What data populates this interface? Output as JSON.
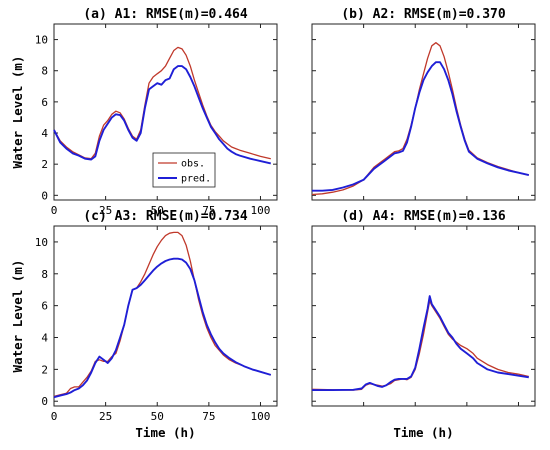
{
  "chart_data": [
    {
      "type": "line",
      "title": "(a) A1: RMSE(m)=0.464",
      "xlabel": "",
      "ylabel": "Water Level (m)",
      "xlim": [
        0,
        108
      ],
      "ylim": [
        -0.3,
        11
      ],
      "xticks": [
        "0",
        "25",
        "50",
        "75",
        "100"
      ],
      "yticks": [
        "0",
        "2",
        "4",
        "6",
        "8",
        "10"
      ],
      "legend": {
        "position": "lower-center",
        "entries": [
          "obs.",
          "pred."
        ]
      },
      "series": [
        {
          "name": "obs.",
          "color": "#c0392b",
          "x": [
            0,
            3,
            6,
            9,
            12,
            15,
            18,
            20,
            22,
            24,
            26,
            28,
            30,
            32,
            34,
            36,
            38,
            40,
            42,
            44,
            46,
            48,
            50,
            52,
            54,
            56,
            58,
            60,
            62,
            64,
            66,
            68,
            70,
            72,
            74,
            76,
            78,
            80,
            82,
            84,
            86,
            88,
            90,
            95,
            100,
            105
          ],
          "y": [
            4.2,
            3.5,
            3.1,
            2.8,
            2.6,
            2.4,
            2.35,
            2.7,
            3.8,
            4.5,
            4.8,
            5.2,
            5.4,
            5.3,
            4.9,
            4.3,
            3.8,
            3.6,
            4.2,
            5.8,
            7.2,
            7.6,
            7.8,
            8.0,
            8.3,
            8.8,
            9.3,
            9.5,
            9.4,
            9.0,
            8.3,
            7.4,
            6.6,
            5.8,
            5.1,
            4.5,
            4.1,
            3.8,
            3.5,
            3.3,
            3.1,
            3.0,
            2.9,
            2.7,
            2.5,
            2.35
          ]
        },
        {
          "name": "pred.",
          "color": "#1f1fd6",
          "x": [
            0,
            3,
            6,
            9,
            12,
            15,
            18,
            20,
            22,
            24,
            26,
            28,
            30,
            32,
            34,
            36,
            38,
            40,
            42,
            44,
            46,
            48,
            50,
            52,
            54,
            56,
            58,
            60,
            62,
            64,
            66,
            68,
            70,
            72,
            74,
            76,
            78,
            80,
            82,
            84,
            86,
            88,
            90,
            95,
            100,
            105
          ],
          "y": [
            4.2,
            3.4,
            3.0,
            2.7,
            2.55,
            2.35,
            2.3,
            2.5,
            3.5,
            4.2,
            4.6,
            5.0,
            5.2,
            5.15,
            4.8,
            4.2,
            3.7,
            3.5,
            4.0,
            5.6,
            6.8,
            7.0,
            7.2,
            7.1,
            7.4,
            7.5,
            8.1,
            8.3,
            8.3,
            8.1,
            7.6,
            7.0,
            6.3,
            5.6,
            5.0,
            4.4,
            4.0,
            3.6,
            3.3,
            3.0,
            2.8,
            2.65,
            2.55,
            2.35,
            2.2,
            2.05
          ]
        }
      ]
    },
    {
      "type": "line",
      "title": "(b) A2: RMSE(m)=0.370",
      "xlabel": "",
      "ylabel": "",
      "xlim": [
        0,
        108
      ],
      "ylim": [
        -0.3,
        11
      ],
      "series": [
        {
          "name": "obs.",
          "color": "#c0392b",
          "x": [
            0,
            5,
            10,
            15,
            20,
            25,
            30,
            35,
            38,
            40,
            42,
            44,
            46,
            48,
            50,
            52,
            54,
            56,
            58,
            60,
            62,
            64,
            66,
            68,
            70,
            72,
            74,
            76,
            80,
            85,
            90,
            95,
            100,
            105
          ],
          "y": [
            0.05,
            0.1,
            0.2,
            0.35,
            0.6,
            1.0,
            1.8,
            2.3,
            2.6,
            2.8,
            2.85,
            3.0,
            3.6,
            4.5,
            5.6,
            6.8,
            7.8,
            8.8,
            9.6,
            9.8,
            9.6,
            8.9,
            7.9,
            6.8,
            5.6,
            4.5,
            3.6,
            2.9,
            2.4,
            2.1,
            1.85,
            1.65,
            1.45,
            1.3
          ]
        },
        {
          "name": "pred.",
          "color": "#1f1fd6",
          "x": [
            0,
            5,
            10,
            15,
            20,
            25,
            30,
            35,
            38,
            40,
            42,
            44,
            46,
            48,
            50,
            52,
            54,
            56,
            58,
            60,
            62,
            64,
            66,
            68,
            70,
            72,
            74,
            76,
            80,
            85,
            90,
            95,
            100,
            105
          ],
          "y": [
            0.3,
            0.3,
            0.35,
            0.5,
            0.7,
            1.0,
            1.7,
            2.2,
            2.5,
            2.7,
            2.75,
            2.85,
            3.4,
            4.4,
            5.6,
            6.6,
            7.4,
            7.9,
            8.3,
            8.55,
            8.55,
            8.1,
            7.4,
            6.5,
            5.4,
            4.4,
            3.5,
            2.8,
            2.35,
            2.05,
            1.8,
            1.6,
            1.45,
            1.3
          ]
        }
      ]
    },
    {
      "type": "line",
      "title": "(c) A3: RMSE(m)=0.734",
      "xlabel": "Time (h)",
      "ylabel": "Water Level (m)",
      "xlim": [
        0,
        108
      ],
      "ylim": [
        -0.3,
        11
      ],
      "xticks": [
        "0",
        "25",
        "50",
        "75",
        "100"
      ],
      "yticks": [
        "0",
        "2",
        "4",
        "6",
        "8",
        "10"
      ],
      "series": [
        {
          "name": "obs.",
          "color": "#c0392b",
          "x": [
            0,
            3,
            6,
            8,
            10,
            12,
            14,
            16,
            18,
            20,
            22,
            24,
            26,
            28,
            30,
            32,
            34,
            36,
            38,
            40,
            42,
            44,
            46,
            48,
            50,
            52,
            54,
            56,
            58,
            60,
            62,
            64,
            66,
            68,
            70,
            72,
            74,
            76,
            78,
            80,
            82,
            85,
            88,
            92,
            96,
            100,
            105
          ],
          "y": [
            0.3,
            0.4,
            0.5,
            0.8,
            0.9,
            0.9,
            1.2,
            1.5,
            1.9,
            2.5,
            2.6,
            2.5,
            2.5,
            2.8,
            3.0,
            3.8,
            4.8,
            6.0,
            7.0,
            7.1,
            7.5,
            8.0,
            8.6,
            9.2,
            9.7,
            10.1,
            10.4,
            10.55,
            10.6,
            10.6,
            10.4,
            9.8,
            8.8,
            7.6,
            6.4,
            5.4,
            4.6,
            4.0,
            3.5,
            3.2,
            2.9,
            2.6,
            2.4,
            2.2,
            2.0,
            1.85,
            1.65
          ]
        },
        {
          "name": "pred.",
          "color": "#1f1fd6",
          "x": [
            0,
            3,
            6,
            8,
            10,
            12,
            14,
            16,
            18,
            20,
            22,
            24,
            26,
            28,
            30,
            32,
            34,
            36,
            38,
            40,
            42,
            44,
            46,
            48,
            50,
            52,
            54,
            56,
            58,
            60,
            62,
            64,
            66,
            68,
            70,
            72,
            74,
            76,
            78,
            80,
            82,
            85,
            88,
            92,
            96,
            100,
            105
          ],
          "y": [
            0.25,
            0.35,
            0.45,
            0.55,
            0.7,
            0.8,
            1.0,
            1.3,
            1.8,
            2.4,
            2.8,
            2.6,
            2.4,
            2.7,
            3.2,
            4.0,
            4.8,
            6.0,
            7.0,
            7.1,
            7.3,
            7.6,
            7.9,
            8.2,
            8.45,
            8.65,
            8.8,
            8.9,
            8.95,
            8.95,
            8.9,
            8.7,
            8.3,
            7.6,
            6.6,
            5.6,
            4.8,
            4.2,
            3.7,
            3.3,
            3.0,
            2.7,
            2.45,
            2.2,
            2.0,
            1.85,
            1.65
          ]
        }
      ]
    },
    {
      "type": "line",
      "title": "(d) A4: RMSE(m)=0.136",
      "xlabel": "Time (h)",
      "ylabel": "",
      "xlim": [
        0,
        108
      ],
      "ylim": [
        -0.3,
        11
      ],
      "series": [
        {
          "name": "obs.",
          "color": "#c0392b",
          "x": [
            0,
            10,
            20,
            24,
            26,
            28,
            30,
            32,
            34,
            36,
            38,
            40,
            42,
            44,
            46,
            48,
            50,
            52,
            54,
            56,
            57,
            58,
            59,
            60,
            62,
            64,
            66,
            68,
            70,
            72,
            75,
            78,
            80,
            85,
            90,
            95,
            100,
            105
          ],
          "y": [
            0.75,
            0.72,
            0.7,
            0.75,
            1.0,
            1.1,
            1.05,
            1.0,
            0.95,
            1.0,
            1.1,
            1.3,
            1.35,
            1.4,
            1.35,
            1.5,
            2.0,
            3.0,
            4.2,
            5.6,
            6.3,
            6.0,
            5.8,
            5.6,
            5.2,
            4.7,
            4.2,
            3.9,
            3.7,
            3.5,
            3.3,
            3.0,
            2.7,
            2.3,
            2.0,
            1.8,
            1.7,
            1.55
          ]
        },
        {
          "name": "pred.",
          "color": "#1f1fd6",
          "x": [
            0,
            10,
            20,
            24,
            26,
            28,
            30,
            32,
            34,
            36,
            38,
            40,
            42,
            44,
            46,
            48,
            50,
            52,
            54,
            56,
            57,
            58,
            59,
            60,
            62,
            64,
            66,
            68,
            70,
            72,
            75,
            78,
            80,
            85,
            90,
            95,
            100,
            105
          ],
          "y": [
            0.7,
            0.7,
            0.72,
            0.8,
            1.05,
            1.15,
            1.05,
            0.95,
            0.9,
            1.0,
            1.2,
            1.35,
            1.4,
            1.4,
            1.4,
            1.55,
            2.1,
            3.3,
            4.6,
            5.8,
            6.6,
            6.1,
            5.9,
            5.7,
            5.3,
            4.8,
            4.3,
            4.0,
            3.6,
            3.3,
            3.0,
            2.7,
            2.4,
            2.0,
            1.8,
            1.7,
            1.6,
            1.5
          ]
        }
      ]
    }
  ]
}
